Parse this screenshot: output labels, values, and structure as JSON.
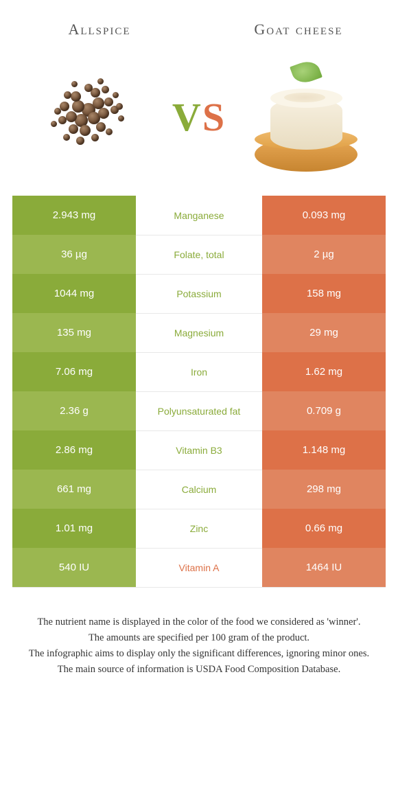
{
  "colors": {
    "left": "#8aab3a",
    "left_alt": "#9bb750",
    "right": "#dd7148",
    "right_alt": "#e08560",
    "mid_label_left": "#8aab3a",
    "mid_label_right": "#dd7148"
  },
  "header": {
    "left": "Allspice",
    "right": "Goat cheese"
  },
  "vs": {
    "v": "V",
    "s": "S"
  },
  "rows": [
    {
      "left": "2.943 mg",
      "label": "Manganese",
      "right": "0.093 mg",
      "winner": "left"
    },
    {
      "left": "36 µg",
      "label": "Folate, total",
      "right": "2 µg",
      "winner": "left"
    },
    {
      "left": "1044 mg",
      "label": "Potassium",
      "right": "158 mg",
      "winner": "left"
    },
    {
      "left": "135 mg",
      "label": "Magnesium",
      "right": "29 mg",
      "winner": "left"
    },
    {
      "left": "7.06 mg",
      "label": "Iron",
      "right": "1.62 mg",
      "winner": "left"
    },
    {
      "left": "2.36 g",
      "label": "Polyunsaturated fat",
      "right": "0.709 g",
      "winner": "left"
    },
    {
      "left": "2.86 mg",
      "label": "Vitamin B3",
      "right": "1.148 mg",
      "winner": "left"
    },
    {
      "left": "661 mg",
      "label": "Calcium",
      "right": "298 mg",
      "winner": "left"
    },
    {
      "left": "1.01 mg",
      "label": "Zinc",
      "right": "0.66 mg",
      "winner": "left"
    },
    {
      "left": "540 IU",
      "label": "Vitamin A",
      "right": "1464 IU",
      "winner": "right"
    }
  ],
  "footer": {
    "l1": "The nutrient name is displayed in the color of the food we considered as 'winner'.",
    "l2": "The amounts are specified per 100 gram of the product.",
    "l3": "The infographic aims to display only the significant differences, ignoring minor ones.",
    "l4": "The main source of information is USDA Food Composition Database."
  }
}
